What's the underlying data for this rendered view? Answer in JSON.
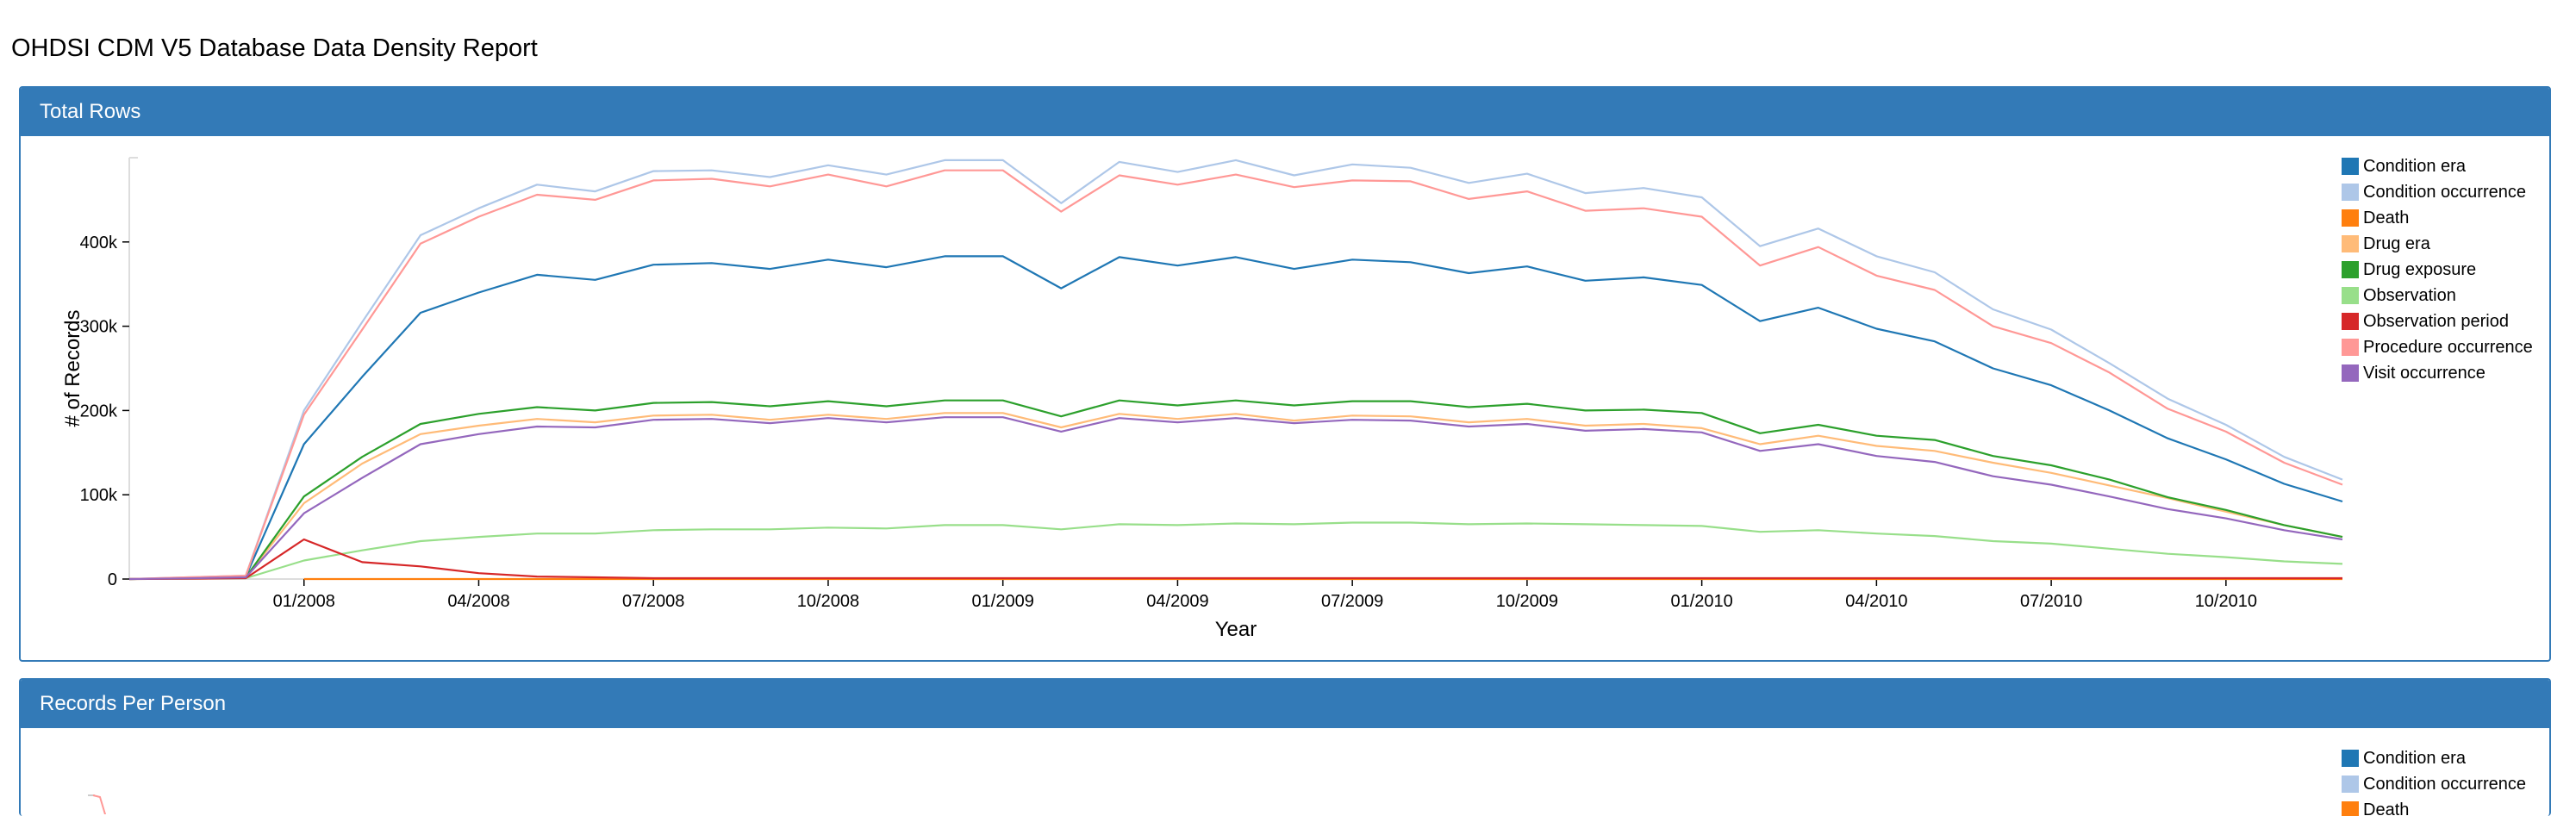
{
  "page": {
    "title": "OHDSI CDM V5 Database Data Density Report"
  },
  "panels": [
    {
      "title": "Total Rows"
    },
    {
      "title": "Records Per Person"
    }
  ],
  "chart_data": [
    {
      "type": "line",
      "title": "",
      "xlabel": "Year",
      "ylabel": "# of Records",
      "ylim": [
        0,
        500000
      ],
      "xlim": [
        "2007-10",
        "2010-12"
      ],
      "yticks": [
        {
          "value": 0,
          "label": "0"
        },
        {
          "value": 100000,
          "label": "100k"
        },
        {
          "value": 200000,
          "label": "200k"
        },
        {
          "value": 300000,
          "label": "300k"
        },
        {
          "value": 400000,
          "label": "400k"
        }
      ],
      "xticks": [
        {
          "value": "2008-01",
          "label": "01/2008"
        },
        {
          "value": "2008-04",
          "label": "04/2008"
        },
        {
          "value": "2008-07",
          "label": "07/2008"
        },
        {
          "value": "2008-10",
          "label": "10/2008"
        },
        {
          "value": "2009-01",
          "label": "01/2009"
        },
        {
          "value": "2009-04",
          "label": "04/2009"
        },
        {
          "value": "2009-07",
          "label": "07/2009"
        },
        {
          "value": "2009-10",
          "label": "10/2009"
        },
        {
          "value": "2010-01",
          "label": "01/2010"
        },
        {
          "value": "2010-04",
          "label": "04/2010"
        },
        {
          "value": "2010-07",
          "label": "07/2010"
        },
        {
          "value": "2010-10",
          "label": "10/2010"
        }
      ],
      "grid": false,
      "legend_position": "right",
      "x": [
        "2007-10",
        "2007-11",
        "2007-12",
        "2008-01",
        "2008-02",
        "2008-03",
        "2008-04",
        "2008-05",
        "2008-06",
        "2008-07",
        "2008-08",
        "2008-09",
        "2008-10",
        "2008-11",
        "2008-12",
        "2009-01",
        "2009-02",
        "2009-03",
        "2009-04",
        "2009-05",
        "2009-06",
        "2009-07",
        "2009-08",
        "2009-09",
        "2009-10",
        "2009-11",
        "2009-12",
        "2010-01",
        "2010-02",
        "2010-03",
        "2010-04",
        "2010-05",
        "2010-06",
        "2010-07",
        "2010-08",
        "2010-09",
        "2010-10",
        "2010-11",
        "2010-12"
      ],
      "series": [
        {
          "name": "Condition era",
          "color": "#1f77b4",
          "values": [
            0,
            1000,
            3000,
            160000,
            240000,
            316000,
            340000,
            361000,
            355000,
            373000,
            375000,
            368000,
            379000,
            370000,
            383000,
            383000,
            345000,
            382000,
            372000,
            382000,
            368000,
            379000,
            376000,
            363000,
            371000,
            354000,
            358000,
            349000,
            306000,
            322000,
            297000,
            282000,
            250000,
            230000,
            200000,
            167000,
            142000,
            113000,
            92000
          ]
        },
        {
          "name": "Condition occurrence",
          "color": "#aec7e8",
          "values": [
            0,
            2000,
            4000,
            200000,
            305000,
            408000,
            440000,
            468000,
            460000,
            484000,
            485000,
            477000,
            491000,
            480000,
            497000,
            497000,
            446000,
            495000,
            483000,
            497000,
            479000,
            492000,
            488000,
            470000,
            481000,
            458000,
            464000,
            453000,
            395000,
            416000,
            383000,
            364000,
            320000,
            296000,
            256000,
            214000,
            183000,
            145000,
            118000
          ]
        },
        {
          "name": "Death",
          "color": "#ff7f0e",
          "values": [
            null,
            null,
            null,
            0,
            0,
            0,
            0,
            0,
            0,
            0,
            0,
            0,
            0,
            0,
            0,
            0,
            0,
            0,
            0,
            0,
            0,
            0,
            0,
            0,
            0,
            0,
            0,
            0,
            0,
            0,
            0,
            0,
            0,
            0,
            0,
            0,
            0,
            0,
            0
          ]
        },
        {
          "name": "Drug era",
          "color": "#ffbb78",
          "values": [
            0,
            800,
            2000,
            90000,
            137000,
            172000,
            182000,
            190000,
            186000,
            194000,
            195000,
            189000,
            195000,
            190000,
            197000,
            197000,
            180000,
            196000,
            190000,
            196000,
            188000,
            194000,
            193000,
            186000,
            190000,
            182000,
            184000,
            179000,
            160000,
            170000,
            158000,
            152000,
            138000,
            126000,
            111000,
            96000,
            80000,
            64000,
            50000
          ]
        },
        {
          "name": "Drug exposure",
          "color": "#2ca02c",
          "values": [
            0,
            800,
            2000,
            98000,
            145000,
            184000,
            196000,
            204000,
            200000,
            209000,
            210000,
            205000,
            211000,
            205000,
            212000,
            212000,
            193000,
            212000,
            206000,
            212000,
            206000,
            211000,
            211000,
            204000,
            208000,
            200000,
            201000,
            197000,
            173000,
            183000,
            170000,
            165000,
            146000,
            135000,
            118000,
            97000,
            82000,
            64000,
            50000
          ]
        },
        {
          "name": "Observation",
          "color": "#98df8a",
          "values": [
            0,
            300,
            1000,
            22000,
            34000,
            45000,
            50000,
            54000,
            54000,
            58000,
            59000,
            59000,
            61000,
            60000,
            64000,
            64000,
            59000,
            65000,
            64000,
            66000,
            65000,
            67000,
            67000,
            65000,
            66000,
            65000,
            64000,
            63000,
            56000,
            58000,
            54000,
            51000,
            45000,
            42000,
            36000,
            30000,
            26000,
            21000,
            18000
          ]
        },
        {
          "name": "Observation period",
          "color": "#d62728",
          "values": [
            0,
            300,
            1000,
            47000,
            20000,
            15000,
            7000,
            3000,
            2000,
            1000,
            1000,
            1000,
            1000,
            1000,
            1000,
            1000,
            1000,
            1000,
            1000,
            1000,
            1000,
            1000,
            1000,
            1000,
            1000,
            1000,
            1000,
            1000,
            1000,
            1000,
            1000,
            1000,
            1000,
            1000,
            1000,
            1000,
            1000,
            1000,
            1000
          ]
        },
        {
          "name": "Procedure occurrence",
          "color": "#ff9896",
          "values": [
            0,
            2000,
            4000,
            195000,
            296000,
            398000,
            430000,
            456000,
            450000,
            473000,
            475000,
            466000,
            480000,
            466000,
            485000,
            485000,
            436000,
            479000,
            468000,
            480000,
            465000,
            473000,
            472000,
            451000,
            460000,
            437000,
            440000,
            430000,
            372000,
            394000,
            360000,
            343000,
            300000,
            280000,
            245000,
            202000,
            175000,
            138000,
            112000
          ]
        },
        {
          "name": "Visit occurrence",
          "color": "#9467bd",
          "values": [
            0,
            800,
            2000,
            78000,
            120000,
            160000,
            172000,
            181000,
            180000,
            189000,
            190000,
            185000,
            191000,
            186000,
            192000,
            192000,
            175000,
            191000,
            186000,
            191000,
            185000,
            189000,
            188000,
            181000,
            184000,
            176000,
            178000,
            174000,
            152000,
            160000,
            146000,
            139000,
            122000,
            112000,
            98000,
            83000,
            72000,
            58000,
            47000
          ]
        }
      ]
    },
    {
      "type": "line",
      "title": "",
      "legend_position": "right",
      "series": [
        {
          "name": "Condition era",
          "color": "#1f77b4"
        },
        {
          "name": "Condition occurrence",
          "color": "#aec7e8"
        },
        {
          "name": "Death",
          "color": "#ff7f0e"
        }
      ]
    }
  ]
}
